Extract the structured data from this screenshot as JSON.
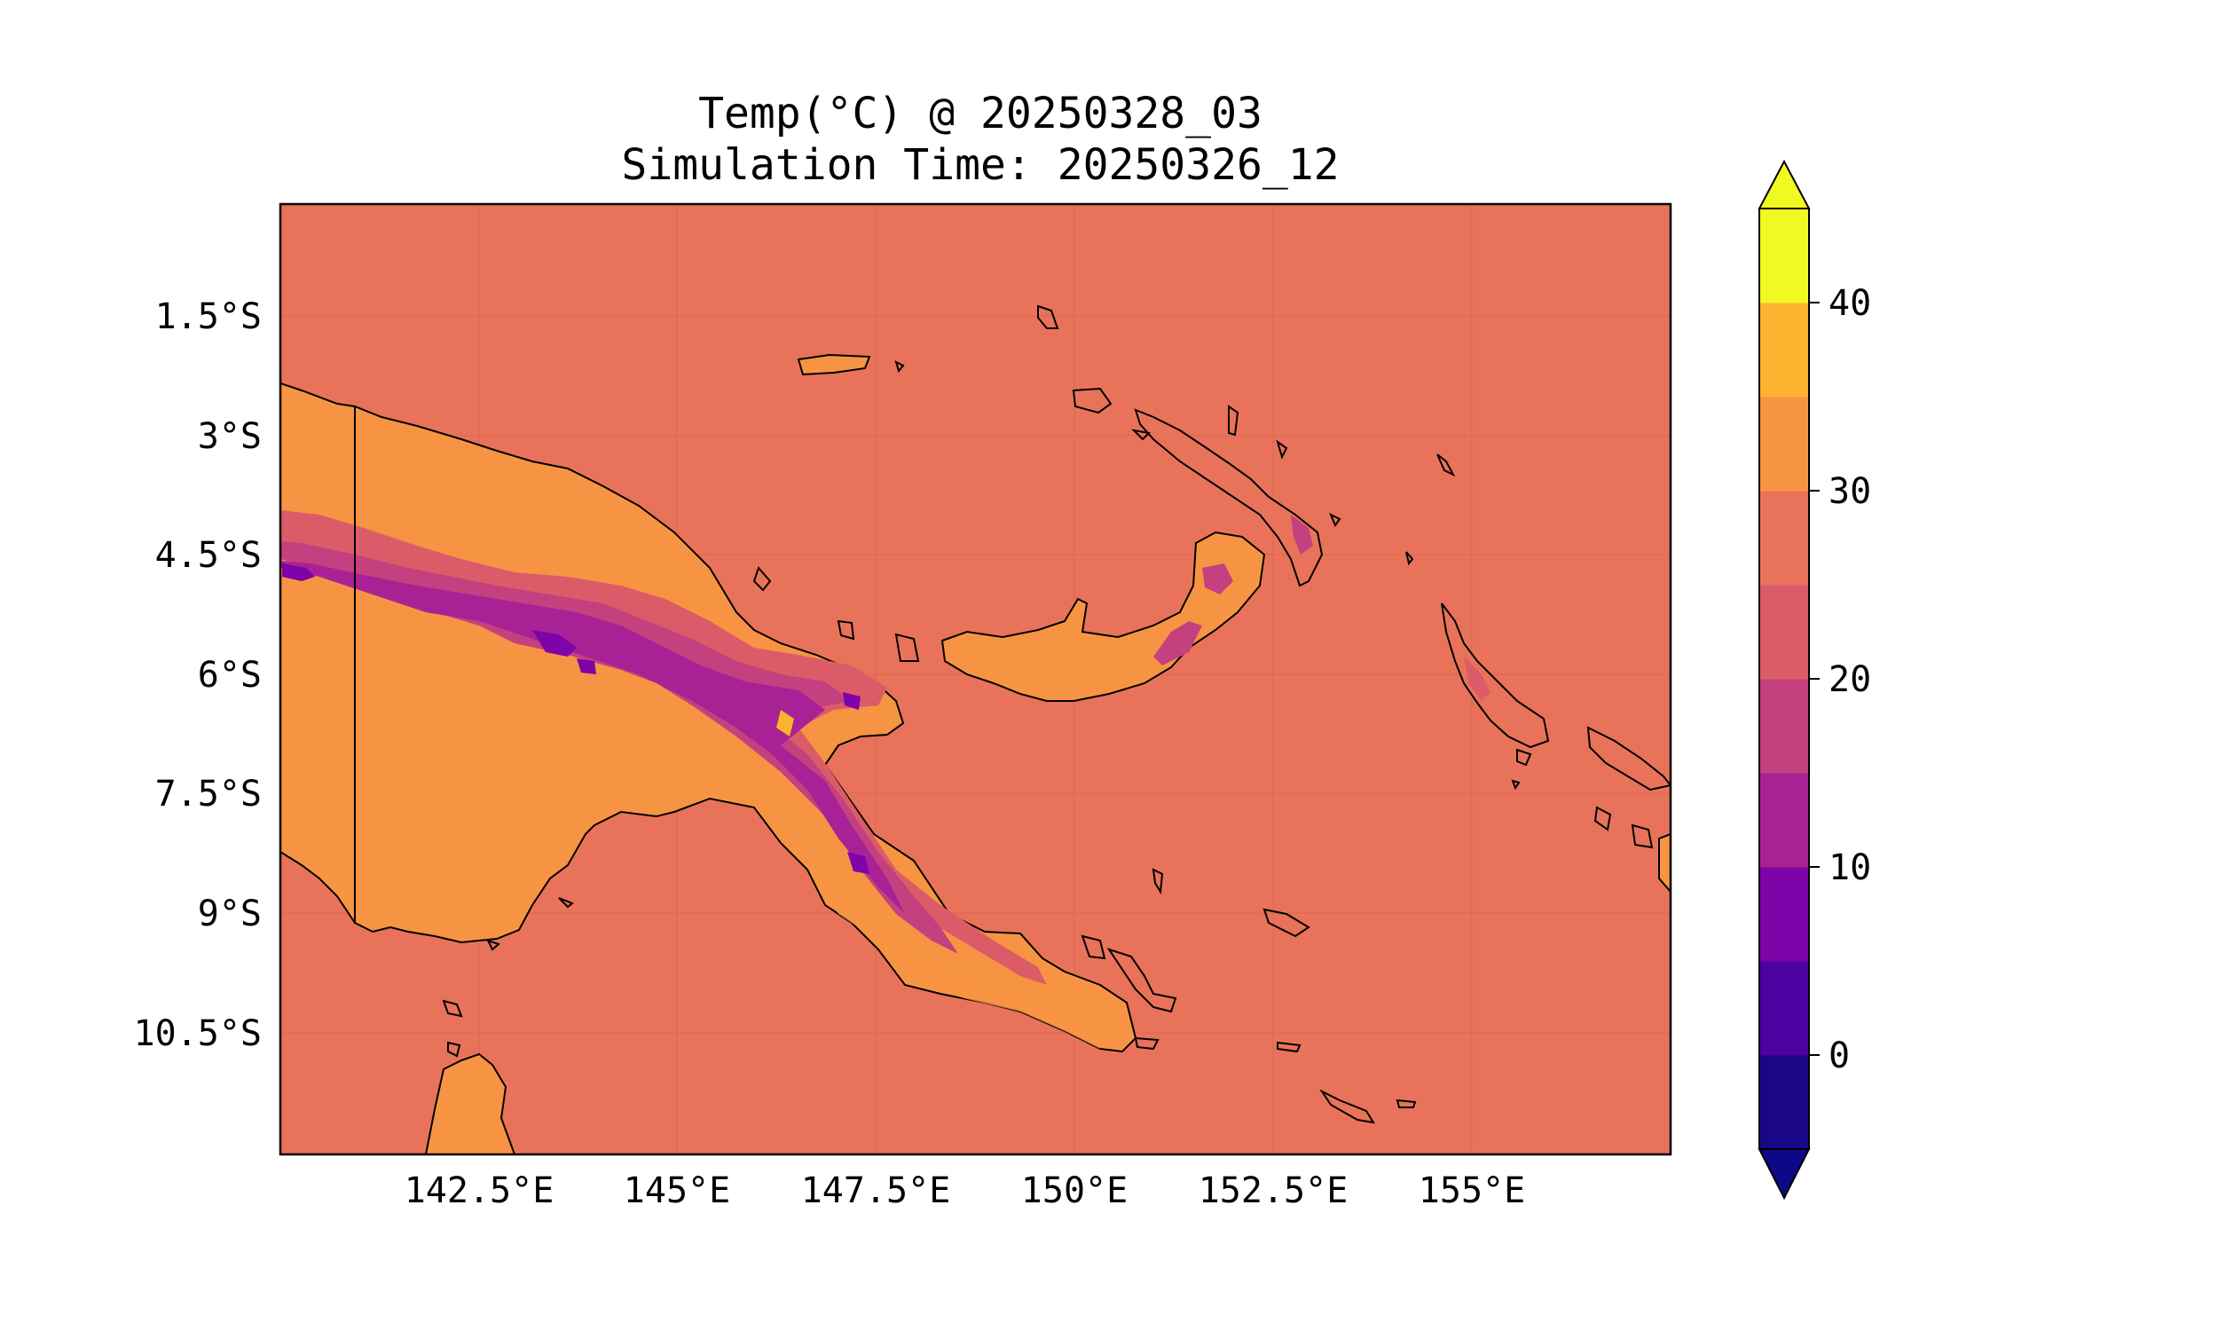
{
  "title": {
    "line1": "Temp(°C) @ 20250328_03",
    "line2": "Simulation Time: 20250326_12"
  },
  "map": {
    "region": "Papua New Guinea",
    "lon_range": [
      140.0,
      157.5
    ],
    "lat_range": [
      -12.0,
      0.0
    ],
    "lat_ticks": [
      "1.5°S",
      "3°S",
      "4.5°S",
      "6°S",
      "7.5°S",
      "9°S",
      "10.5°S"
    ],
    "lon_ticks": [
      "142.5°E",
      "145°E",
      "147.5°E",
      "150°E",
      "152.5°E",
      "155°E"
    ],
    "ocean_color": "#e8735a",
    "lowland_color": "#f79443",
    "border_line": "vertical land border near 141°E"
  },
  "colorbar": {
    "tick_labels": [
      "0",
      "10",
      "20",
      "30",
      "40"
    ],
    "levels": [
      -5,
      0,
      5,
      10,
      15,
      20,
      25,
      30,
      35,
      40,
      45
    ],
    "colors": [
      "#1a0787",
      "#4c02a1",
      "#7e03a8",
      "#a82296",
      "#c5407e",
      "#db5c68",
      "#e8735a",
      "#f79443",
      "#fdb32f",
      "#f0f921"
    ],
    "under_color": "#0d0887",
    "over_color": "#f0f921",
    "extend": "both"
  }
}
